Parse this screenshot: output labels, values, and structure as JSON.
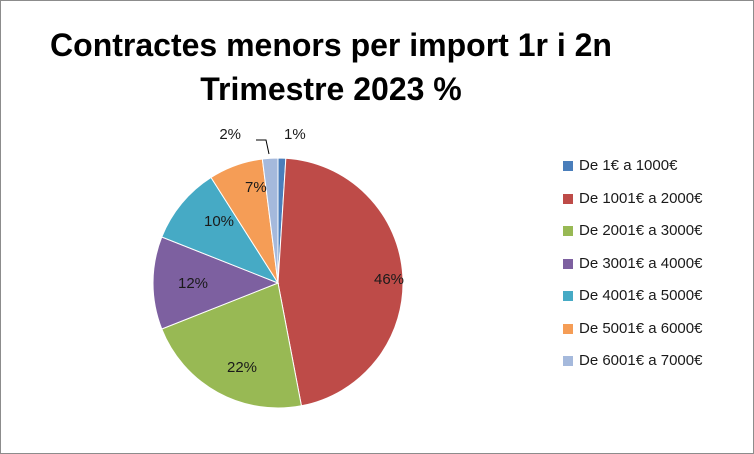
{
  "chart_data": {
    "type": "pie",
    "title_lines": [
      "Contractes menors per import 1r i 2n",
      "Trimestre 2023 %"
    ],
    "labels": [
      "De 1€ a 1000€",
      "De 1001€ a 2000€",
      "De 2001€ a 3000€",
      "De 3001€ a 4000€",
      "De 4001€ a 5000€",
      "De 5001€ a 6000€",
      "De 6001€ a 7000€"
    ],
    "values": [
      1,
      46,
      22,
      12,
      10,
      7,
      2
    ],
    "data_labels": [
      "1%",
      "46%",
      "22%",
      "12%",
      "10%",
      "7%",
      "2%"
    ],
    "colors": [
      "#4a7ebb",
      "#be4b48",
      "#98b954",
      "#7d60a0",
      "#46aac5",
      "#f59d56",
      "#a5b9dc"
    ],
    "legend_position": "right"
  }
}
